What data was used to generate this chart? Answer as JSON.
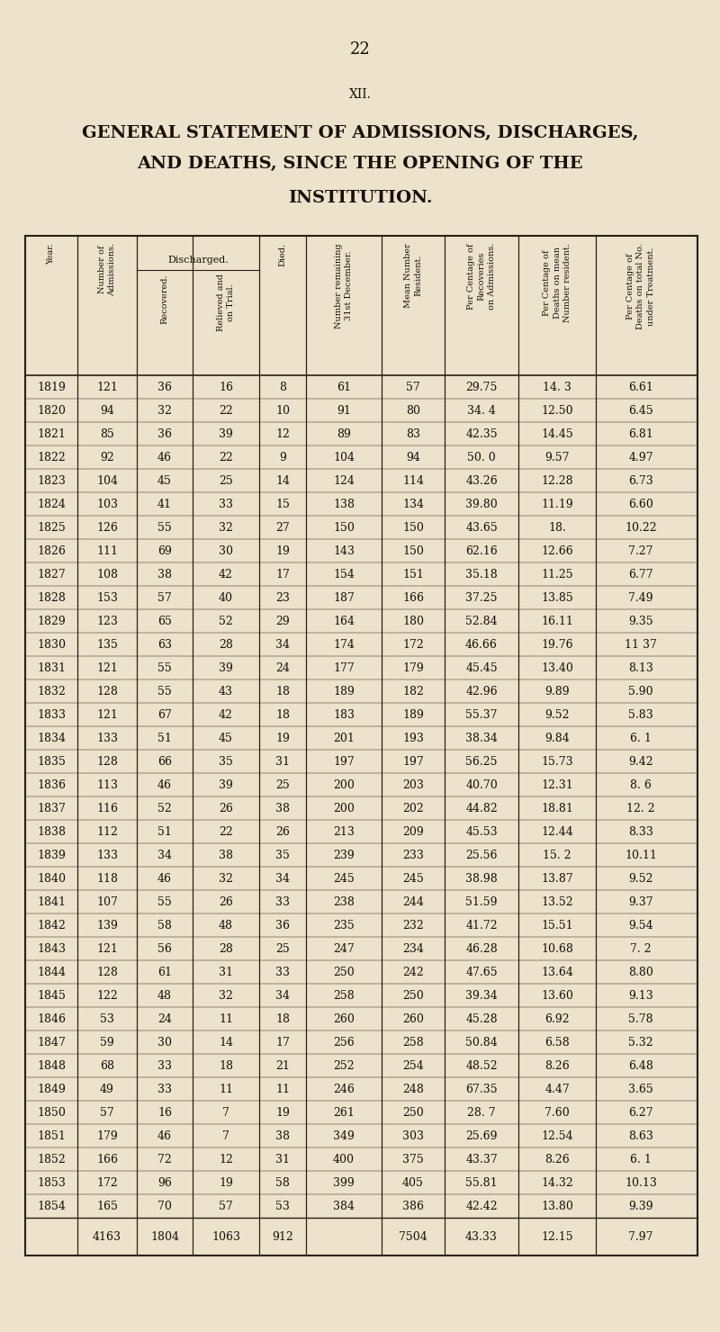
{
  "page_number": "22",
  "section": "XII.",
  "title_lines": [
    "GENERAL STATEMENT OF ADMISSIONS, DISCHARGES,",
    "AND DEATHS, SINCE THE OPENING OF THE",
    "INSTITUTION."
  ],
  "col_headers": [
    "Year.",
    "Number of\nAdmissions.",
    "Recovered.",
    "Relieved and\non Trial.",
    "Died.",
    "Number remaining\n31st December.",
    "Mean Number\nResident.",
    "Per Centage of\nRecoveries\non Admissions.",
    "Per Centage of\nDeaths on mean\nNumber resident.",
    "Per Centage of\nDeaths on total No.\nunder Treatment."
  ],
  "discharged_header": "Discharged.",
  "rows": [
    [
      "1819",
      "121",
      "36",
      "16",
      "8",
      "61",
      "57",
      "29.75",
      "14. 3",
      "6.61"
    ],
    [
      "1820",
      "94",
      "32",
      "22",
      "10",
      "91",
      "80",
      "34. 4",
      "12.50",
      "6.45"
    ],
    [
      "1821",
      "85",
      "36",
      "39",
      "12",
      "89",
      "83",
      "42.35",
      "14.45",
      "6.81"
    ],
    [
      "1822",
      "92",
      "46",
      "22",
      "9",
      "104",
      "94",
      "50. 0",
      "9.57",
      "4.97"
    ],
    [
      "1823",
      "104",
      "45",
      "25",
      "14",
      "124",
      "114",
      "43.26",
      "12.28",
      "6.73"
    ],
    [
      "1824",
      "103",
      "41",
      "33",
      "15",
      "138",
      "134",
      "39.80",
      "11.19",
      "6.60"
    ],
    [
      "1825",
      "126",
      "55",
      "32",
      "27",
      "150",
      "150",
      "43.65",
      "18.",
      "10.22"
    ],
    [
      "1826",
      "111",
      "69",
      "30",
      "19",
      "143",
      "150",
      "62.16",
      "12.66",
      "7.27"
    ],
    [
      "1827",
      "108",
      "38",
      "42",
      "17",
      "154",
      "151",
      "35.18",
      "11.25",
      "6.77"
    ],
    [
      "1828",
      "153",
      "57",
      "40",
      "23",
      "187",
      "166",
      "37.25",
      "13.85",
      "7.49"
    ],
    [
      "1829",
      "123",
      "65",
      "52",
      "29",
      "164",
      "180",
      "52.84",
      "16.11",
      "9.35"
    ],
    [
      "1830",
      "135",
      "63",
      "28",
      "34",
      "174",
      "172",
      "46.66",
      "19.76",
      "11 37"
    ],
    [
      "1831",
      "121",
      "55",
      "39",
      "24",
      "177",
      "179",
      "45.45",
      "13.40",
      "8.13"
    ],
    [
      "1832",
      "128",
      "55",
      "43",
      "18",
      "189",
      "182",
      "42.96",
      "9.89",
      "5.90"
    ],
    [
      "1833",
      "121",
      "67",
      "42",
      "18",
      "183",
      "189",
      "55.37",
      "9.52",
      "5.83"
    ],
    [
      "1834",
      "133",
      "51",
      "45",
      "19",
      "201",
      "193",
      "38.34",
      "9.84",
      "6. 1"
    ],
    [
      "1835",
      "128",
      "66",
      "35",
      "31",
      "197",
      "197",
      "56.25",
      "15.73",
      "9.42"
    ],
    [
      "1836",
      "113",
      "46",
      "39",
      "25",
      "200",
      "203",
      "40.70",
      "12.31",
      "8. 6"
    ],
    [
      "1837",
      "116",
      "52",
      "26",
      "38",
      "200",
      "202",
      "44.82",
      "18.81",
      "12. 2"
    ],
    [
      "1838",
      "112",
      "51",
      "22",
      "26",
      "213",
      "209",
      "45.53",
      "12.44",
      "8.33"
    ],
    [
      "1839",
      "133",
      "34",
      "38",
      "35",
      "239",
      "233",
      "25.56",
      "15. 2",
      "10.11"
    ],
    [
      "1840",
      "118",
      "46",
      "32",
      "34",
      "245",
      "245",
      "38.98",
      "13.87",
      "9.52"
    ],
    [
      "1841",
      "107",
      "55",
      "26",
      "33",
      "238",
      "244",
      "51.59",
      "13.52",
      "9.37"
    ],
    [
      "1842",
      "139",
      "58",
      "48",
      "36",
      "235",
      "232",
      "41.72",
      "15.51",
      "9.54"
    ],
    [
      "1843",
      "121",
      "56",
      "28",
      "25",
      "247",
      "234",
      "46.28",
      "10.68",
      "7. 2"
    ],
    [
      "1844",
      "128",
      "61",
      "31",
      "33",
      "250",
      "242",
      "47.65",
      "13.64",
      "8.80"
    ],
    [
      "1845",
      "122",
      "48",
      "32",
      "34",
      "258",
      "250",
      "39.34",
      "13.60",
      "9.13"
    ],
    [
      "1846",
      "53",
      "24",
      "11",
      "18",
      "260",
      "260",
      "45.28",
      "6.92",
      "5.78"
    ],
    [
      "1847",
      "59",
      "30",
      "14",
      "17",
      "256",
      "258",
      "50.84",
      "6.58",
      "5.32"
    ],
    [
      "1848",
      "68",
      "33",
      "18",
      "21",
      "252",
      "254",
      "48.52",
      "8.26",
      "6.48"
    ],
    [
      "1849",
      "49",
      "33",
      "11",
      "11",
      "246",
      "248",
      "67.35",
      "4.47",
      "3.65"
    ],
    [
      "1850",
      "57",
      "16",
      "7",
      "19",
      "261",
      "250",
      "28. 7",
      "7.60",
      "6.27"
    ],
    [
      "1851",
      "179",
      "46",
      "7",
      "38",
      "349",
      "303",
      "25.69",
      "12.54",
      "8.63"
    ],
    [
      "1852",
      "166",
      "72",
      "12",
      "31",
      "400",
      "375",
      "43.37",
      "8.26",
      "6. 1"
    ],
    [
      "1853",
      "172",
      "96",
      "19",
      "58",
      "399",
      "405",
      "55.81",
      "14.32",
      "10.13"
    ],
    [
      "1854",
      "165",
      "70",
      "57",
      "53",
      "384",
      "386",
      "42.42",
      "13.80",
      "9.39"
    ]
  ],
  "totals_row": [
    "",
    "4163",
    "1804",
    "1063",
    "912",
    "",
    "7504",
    "43.33",
    "12.15",
    "7.97"
  ],
  "bg_color": "#ede3cc",
  "text_color": "#1a1008",
  "line_color": "#2a2010",
  "page_num_fontsize": 13,
  "section_fontsize": 10,
  "title_fontsize": 14,
  "data_fontsize": 9,
  "header_fontsize": 7
}
